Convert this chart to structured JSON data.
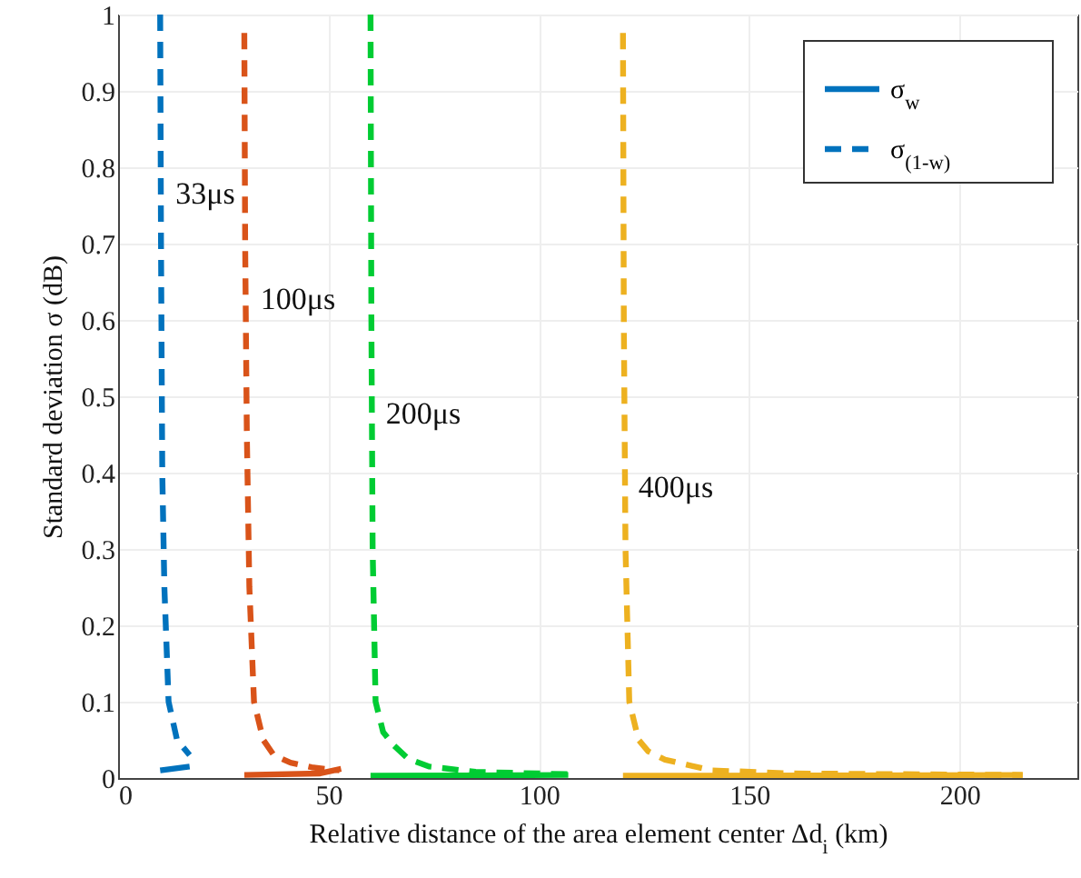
{
  "chart_data": {
    "type": "line",
    "xlabel": "Relative distance of the area element center Δd$_{i}$ (km)",
    "ylabel": "Standard deviation σ (dB)",
    "xlim": [
      0,
      228
    ],
    "xticks": [
      0,
      50,
      100,
      150,
      200
    ],
    "ylim": [
      0,
      1
    ],
    "yticks": [
      0,
      0.1,
      0.2,
      0.3,
      0.4,
      0.5,
      0.6,
      0.7,
      0.8,
      0.9,
      1
    ],
    "grid": true,
    "legend": "top right",
    "series": [
      {
        "name": "σ$_{w}$",
        "color": "#0072bd",
        "line_style": "solid",
        "x": [
          10,
          17
        ],
        "values": [
          0.01,
          0.015
        ]
      },
      {
        "name": "σ$_{(1-w)}$",
        "color": "#0072bd",
        "line_style": "dashed",
        "x": [
          10,
          10.2,
          10.5,
          11,
          12,
          14,
          17
        ],
        "values": [
          1,
          0.7,
          0.4,
          0.25,
          0.1,
          0.05,
          0.03
        ]
      },
      {
        "color": "#d95319",
        "line_style": "solid",
        "x": [
          30,
          48,
          53
        ],
        "values": [
          0.004,
          0.006,
          0.012
        ]
      },
      {
        "color": "#d95319",
        "line_style": "dashed",
        "x": [
          30,
          30.2,
          30.6,
          31.2,
          32.3,
          34.5,
          37,
          41,
          46,
          52.6
        ],
        "values": [
          0.976,
          0.7,
          0.45,
          0.25,
          0.1,
          0.05,
          0.03,
          0.02,
          0.014,
          0.01
        ]
      },
      {
        "color": "#00cc33",
        "line_style": "solid",
        "x": [
          60,
          107
        ],
        "values": [
          0.003,
          0.004
        ]
      },
      {
        "color": "#00cc33",
        "line_style": "dashed",
        "x": [
          60,
          60.2,
          60.5,
          61.2,
          63,
          65.5,
          69,
          74,
          85,
          107
        ],
        "values": [
          1,
          0.6,
          0.3,
          0.1,
          0.06,
          0.043,
          0.025,
          0.015,
          0.008,
          0.005
        ]
      },
      {
        "color": "#edb120",
        "line_style": "solid",
        "x": [
          120,
          215
        ],
        "values": [
          0.003,
          0.004
        ]
      },
      {
        "color": "#edb120",
        "line_style": "dashed",
        "x": [
          120,
          120.2,
          120.6,
          121.5,
          123.7,
          126,
          130,
          141,
          160,
          215
        ],
        "values": [
          0.976,
          0.6,
          0.3,
          0.1,
          0.05,
          0.035,
          0.024,
          0.01,
          0.006,
          0.004
        ]
      }
    ],
    "annotations": [
      {
        "text": "33μs",
        "x": 10.2,
        "y": 0.764
      },
      {
        "text": "100μs",
        "x": 30.4,
        "y": 0.626
      },
      {
        "text": "200μs",
        "x": 60.2,
        "y": 0.476
      },
      {
        "text": "400μs",
        "x": 120.2,
        "y": 0.38
      }
    ]
  }
}
